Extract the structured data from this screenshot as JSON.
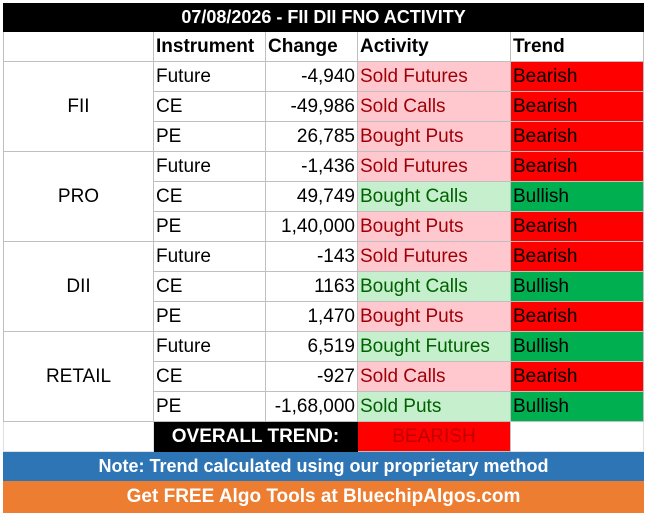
{
  "title": "07/08/2026 - FII DII FNO ACTIVITY",
  "headers": {
    "blank": "",
    "instrument": "Instrument",
    "change": "Change",
    "activity": "Activity",
    "trend": "Trend"
  },
  "groups": [
    {
      "name": "FII",
      "rows": [
        {
          "instrument": "Future",
          "change": "-4,940",
          "activity": "Sold Futures",
          "trend": "Bearish"
        },
        {
          "instrument": "CE",
          "change": "-49,986",
          "activity": "Sold Calls",
          "trend": "Bearish"
        },
        {
          "instrument": "PE",
          "change": "26,785",
          "activity": "Bought Puts",
          "trend": "Bearish"
        }
      ]
    },
    {
      "name": "PRO",
      "rows": [
        {
          "instrument": "Future",
          "change": "-1,436",
          "activity": "Sold Futures",
          "trend": "Bearish"
        },
        {
          "instrument": "CE",
          "change": "49,749",
          "activity": "Bought Calls",
          "trend": "Bullish"
        },
        {
          "instrument": "PE",
          "change": "1,40,000",
          "activity": "Bought Puts",
          "trend": "Bearish"
        }
      ]
    },
    {
      "name": "DII",
      "rows": [
        {
          "instrument": "Future",
          "change": "-143",
          "activity": "Sold Futures",
          "trend": "Bearish"
        },
        {
          "instrument": "CE",
          "change": "1163",
          "activity": "Bought Calls",
          "trend": "Bullish"
        },
        {
          "instrument": "PE",
          "change": "1,470",
          "activity": "Bought Puts",
          "trend": "Bearish"
        }
      ]
    },
    {
      "name": "RETAIL",
      "rows": [
        {
          "instrument": "Future",
          "change": "6,519",
          "activity": "Bought Futures",
          "trend": "Bullish"
        },
        {
          "instrument": "CE",
          "change": "-927",
          "activity": "Sold Calls",
          "trend": "Bearish"
        },
        {
          "instrument": "PE",
          "change": "-1,68,000",
          "activity": "Sold Puts",
          "trend": "Bullish"
        }
      ]
    }
  ],
  "overall": {
    "label": "OVERALL TREND:",
    "value": "BEARISH"
  },
  "note": "Note: Trend calculated using our proprietary method",
  "promo": "Get FREE Algo Tools at BluechipAlgos.com",
  "colors": {
    "bullish_activity_bg": "#c6efce",
    "bearish_activity_bg": "#ffc7ce",
    "bullish_trend_bg": "#00b050",
    "bearish_trend_bg": "#ff0000",
    "note_bg": "#2e75b6",
    "promo_bg": "#ed7d31"
  }
}
